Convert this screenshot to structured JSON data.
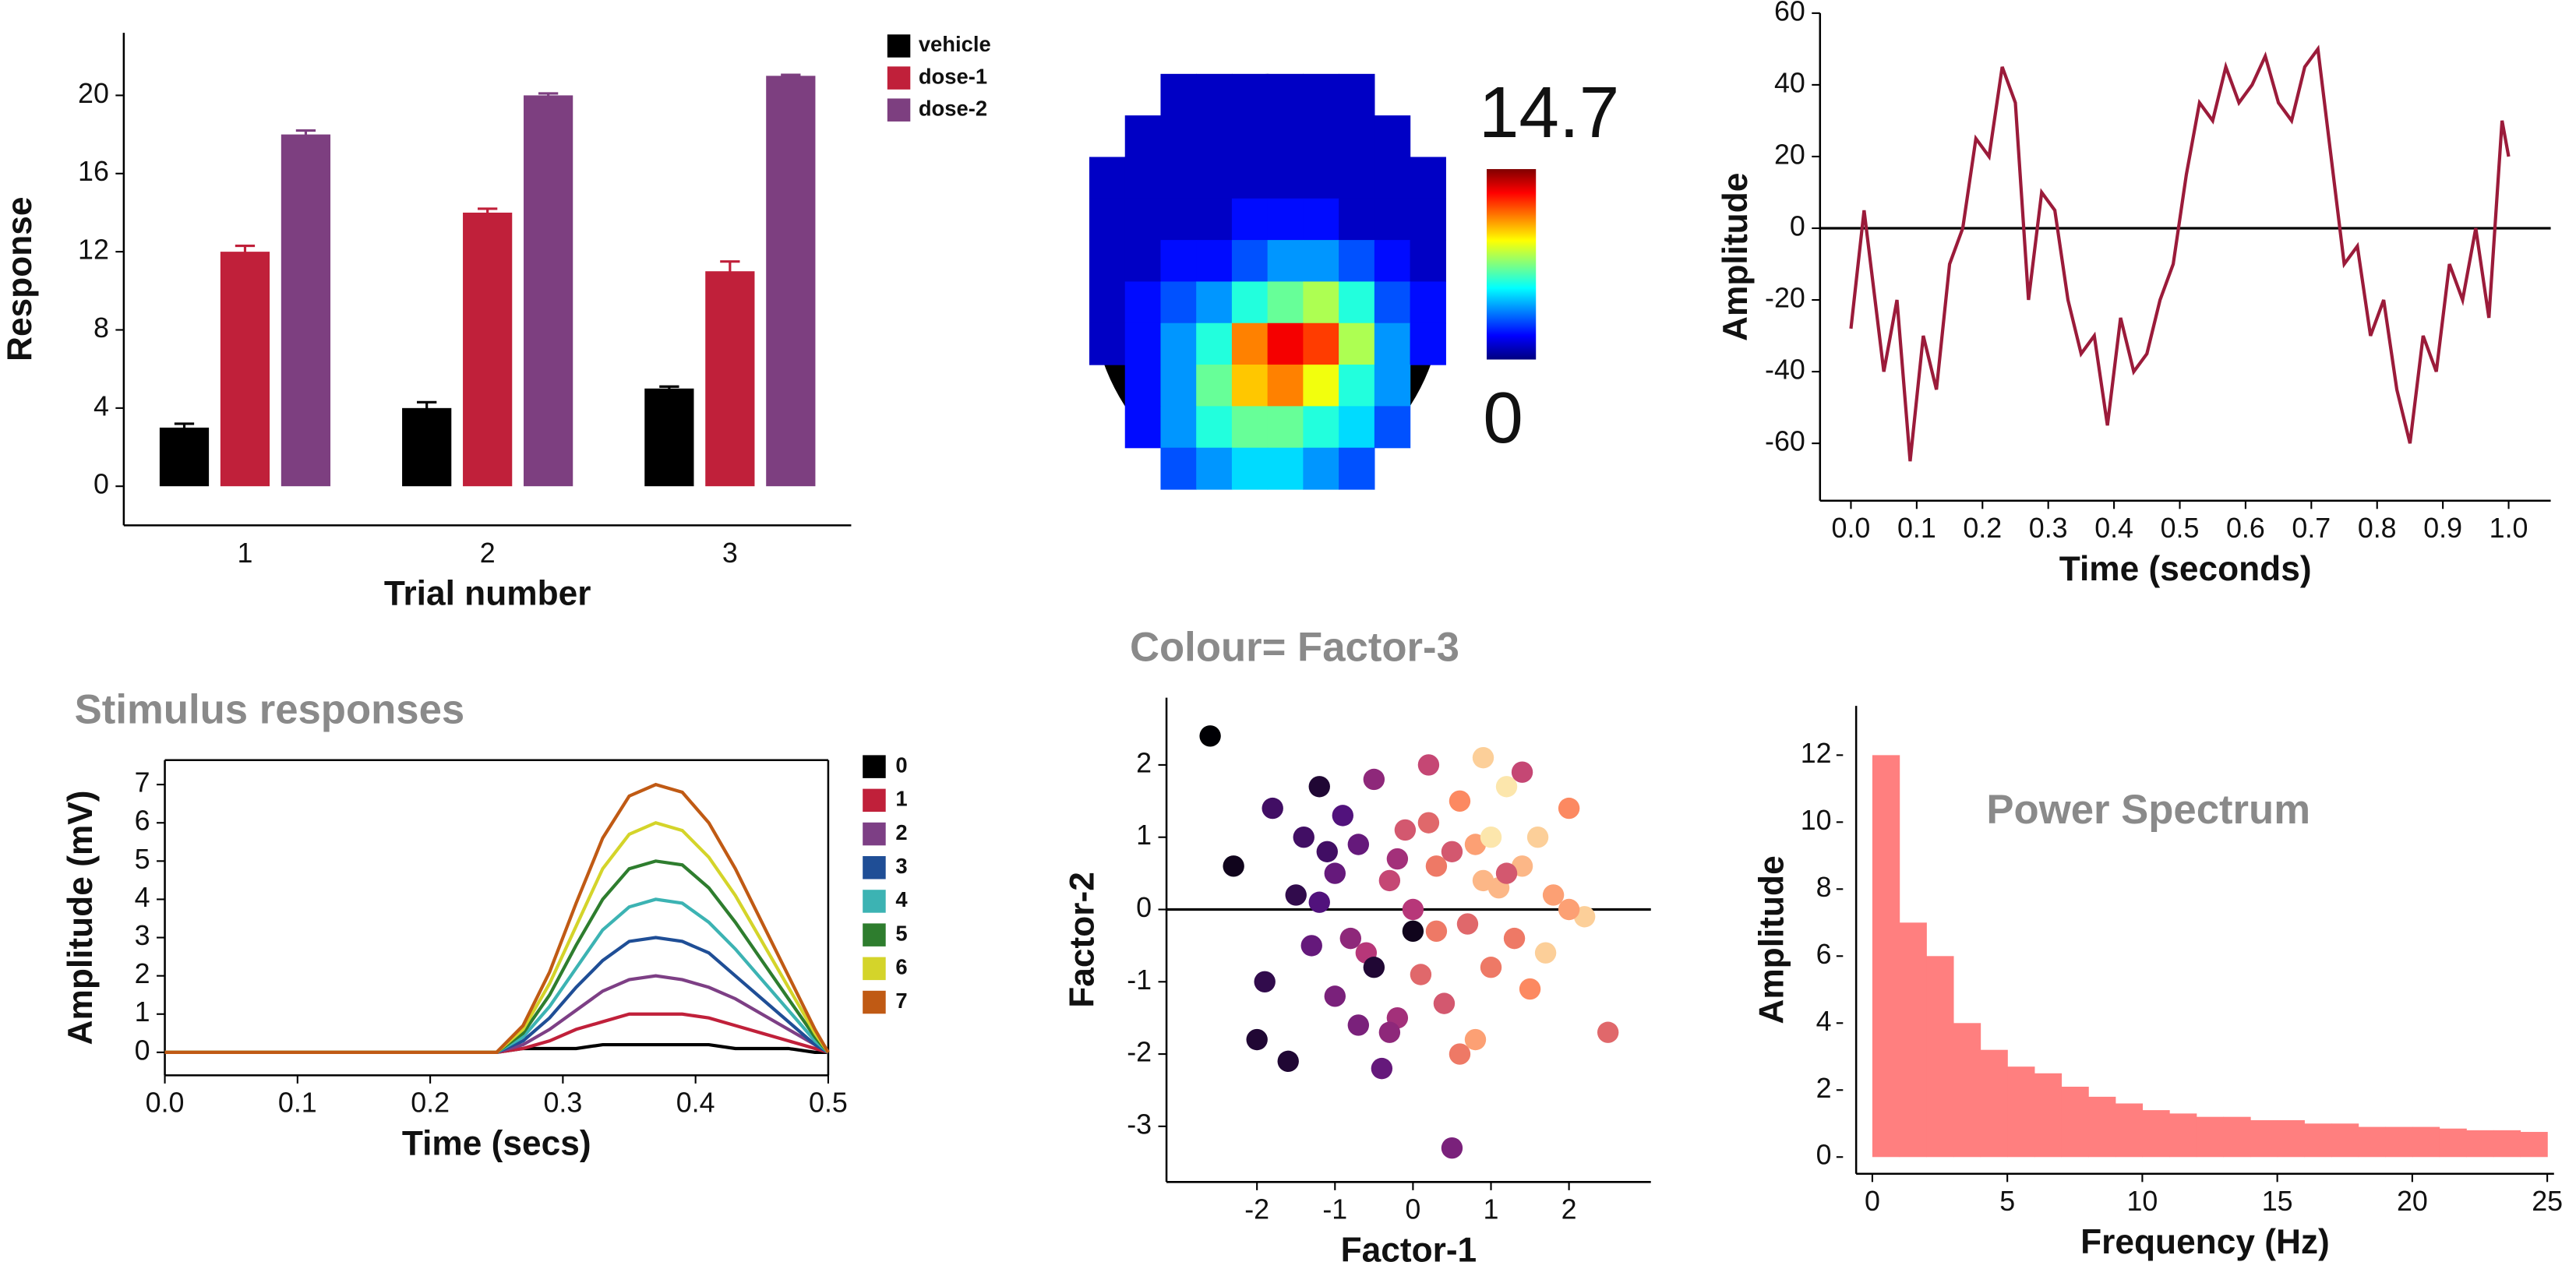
{
  "chart_data": [
    {
      "type": "bar",
      "ylabel": "Response",
      "xlabel": "Trial number",
      "categories": [
        1,
        2,
        3
      ],
      "series": [
        {
          "name": "vehicle",
          "color": "#000000",
          "values": [
            3,
            4,
            5
          ],
          "errors": [
            0.2,
            0.3,
            0.1
          ]
        },
        {
          "name": "dose-1",
          "color": "#c0203a",
          "values": [
            12,
            14,
            11
          ],
          "errors": [
            0.3,
            0.2,
            0.5
          ]
        },
        {
          "name": "dose-2",
          "color": "#7d3f80",
          "values": [
            18,
            20,
            21
          ],
          "errors": [
            0.2,
            0.1,
            0.05
          ]
        }
      ],
      "ylim": [
        -2,
        23.2
      ],
      "yticks": [
        0,
        4,
        8,
        12,
        16,
        20
      ]
    },
    {
      "type": "heatmap",
      "clim": [
        0,
        14.7
      ],
      "colormap": "jet",
      "values": [
        [
          null,
          null,
          1,
          1,
          1,
          1,
          1,
          1,
          null,
          null
        ],
        [
          null,
          1,
          1,
          1,
          1,
          1,
          1,
          1,
          1,
          null
        ],
        [
          1,
          1,
          1,
          1,
          1,
          1,
          1,
          1,
          1,
          1
        ],
        [
          1,
          1,
          1,
          1,
          2,
          2,
          2,
          1,
          1,
          1
        ],
        [
          1,
          1,
          2,
          2,
          3,
          4,
          4,
          3,
          2,
          1
        ],
        [
          1,
          2,
          3,
          4,
          6,
          7,
          8,
          6,
          3,
          2
        ],
        [
          1,
          2,
          4,
          6,
          11,
          13,
          12,
          8,
          4,
          2
        ],
        [
          null,
          2,
          4,
          7,
          10,
          11,
          9,
          6,
          4,
          null
        ],
        [
          null,
          2,
          4,
          6,
          7,
          7,
          6,
          5,
          3,
          null
        ],
        [
          null,
          null,
          3,
          4,
          5,
          5,
          4,
          3,
          null,
          null
        ]
      ]
    },
    {
      "type": "line",
      "ylabel": "Amplitude",
      "xlabel": "Time (seconds)",
      "color": "#9b1b3a",
      "zero_line": true,
      "x": [
        0,
        0.02,
        0.05,
        0.07,
        0.09,
        0.11,
        0.13,
        0.15,
        0.17,
        0.19,
        0.21,
        0.23,
        0.25,
        0.27,
        0.29,
        0.31,
        0.33,
        0.35,
        0.37,
        0.39,
        0.41,
        0.43,
        0.45,
        0.47,
        0.49,
        0.51,
        0.53,
        0.55,
        0.57,
        0.59,
        0.61,
        0.63,
        0.65,
        0.67,
        0.69,
        0.71,
        0.73,
        0.75,
        0.77,
        0.79,
        0.81,
        0.83,
        0.85,
        0.87,
        0.89,
        0.91,
        0.93,
        0.95,
        0.97,
        0.99,
        1.0
      ],
      "values": [
        -28,
        5,
        -40,
        -20,
        -65,
        -30,
        -45,
        -10,
        0,
        25,
        20,
        45,
        35,
        -20,
        10,
        5,
        -20,
        -35,
        -30,
        -55,
        -25,
        -40,
        -35,
        -20,
        -10,
        15,
        35,
        30,
        45,
        35,
        40,
        48,
        35,
        30,
        45,
        50,
        20,
        -10,
        -5,
        -30,
        -20,
        -45,
        -60,
        -30,
        -40,
        -10,
        -20,
        0,
        -25,
        30,
        20
      ],
      "xlim": [
        -0.047,
        1.064
      ],
      "xticks": [
        {
          "value": 0,
          "label": "0.0"
        },
        0.1,
        0.2,
        0.3,
        0.4,
        0.5,
        0.6,
        0.7,
        0.8,
        0.9,
        {
          "value": 1,
          "label": "1.0"
        }
      ],
      "ylim": [
        -76,
        60
      ],
      "yticks": [
        -60,
        -40,
        -20,
        0,
        20,
        40,
        60
      ]
    },
    {
      "type": "multiline",
      "title": "Stimulus responses",
      "ylabel": "Amplitude (mV)",
      "xlabel": "Time (secs)",
      "x": [
        0,
        0.05,
        0.1,
        0.15,
        0.2,
        0.25,
        0.27,
        0.29,
        0.31,
        0.33,
        0.35,
        0.37,
        0.39,
        0.41,
        0.43,
        0.45,
        0.47,
        0.49,
        0.5
      ],
      "series": [
        {
          "name": "0",
          "color": "#000000",
          "values": [
            0,
            0,
            0,
            0,
            0,
            0,
            0.1,
            0.1,
            0.1,
            0.2,
            0.2,
            0.2,
            0.2,
            0.2,
            0.1,
            0.1,
            0.1,
            0,
            0
          ]
        },
        {
          "name": "1",
          "color": "#c0203a",
          "values": [
            0,
            0,
            0,
            0,
            0,
            0,
            0.1,
            0.3,
            0.6,
            0.8,
            1.0,
            1.0,
            1.0,
            0.9,
            0.7,
            0.5,
            0.3,
            0.1,
            0
          ]
        },
        {
          "name": "2",
          "color": "#7d3f85",
          "values": [
            0,
            0,
            0,
            0,
            0,
            0,
            0.2,
            0.6,
            1.1,
            1.6,
            1.9,
            2.0,
            1.9,
            1.7,
            1.4,
            1.0,
            0.6,
            0.2,
            0
          ]
        },
        {
          "name": "3",
          "color": "#1f4e96",
          "values": [
            0,
            0,
            0,
            0,
            0,
            0,
            0.3,
            0.9,
            1.7,
            2.4,
            2.9,
            3.0,
            2.9,
            2.6,
            2.0,
            1.4,
            0.8,
            0.2,
            0
          ]
        },
        {
          "name": "4",
          "color": "#3cb3b3",
          "values": [
            0,
            0,
            0,
            0,
            0,
            0,
            0.4,
            1.2,
            2.2,
            3.2,
            3.8,
            4.0,
            3.9,
            3.4,
            2.7,
            1.9,
            1.1,
            0.3,
            0
          ]
        },
        {
          "name": "5",
          "color": "#2e7d2e",
          "values": [
            0,
            0,
            0,
            0,
            0,
            0,
            0.5,
            1.5,
            2.8,
            4.0,
            4.8,
            5.0,
            4.9,
            4.3,
            3.4,
            2.4,
            1.4,
            0.4,
            0
          ]
        },
        {
          "name": "6",
          "color": "#d4d42a",
          "values": [
            0,
            0,
            0,
            0,
            0,
            0,
            0.6,
            1.8,
            3.3,
            4.8,
            5.7,
            6.0,
            5.8,
            5.1,
            4.1,
            2.9,
            1.7,
            0.5,
            0
          ]
        },
        {
          "name": "7",
          "color": "#c05a14",
          "values": [
            0,
            0,
            0,
            0,
            0,
            0,
            0.7,
            2.1,
            3.9,
            5.6,
            6.7,
            7.0,
            6.8,
            6.0,
            4.8,
            3.4,
            2.0,
            0.6,
            0
          ]
        }
      ],
      "xlim": [
        0,
        0.5
      ],
      "xticks": [
        {
          "value": 0,
          "label": "0.0"
        },
        0.1,
        0.2,
        0.3,
        0.4,
        0.5
      ],
      "ylim": [
        -0.6,
        7.64
      ],
      "yticks": [
        0,
        1,
        2,
        3,
        4,
        5,
        6,
        7
      ]
    },
    {
      "type": "scatter",
      "title": "Colour= Factor-3",
      "xlabel": "Factor-1",
      "ylabel": "Factor-2",
      "colormap": "magma",
      "zero_line": true,
      "x": [
        -2.6,
        -2.3,
        -2.0,
        -1.8,
        -1.6,
        -1.5,
        -1.3,
        -1.2,
        -1.1,
        -1.0,
        -0.9,
        -0.8,
        -0.7,
        -0.6,
        -0.5,
        -0.4,
        -0.3,
        -0.2,
        -0.1,
        0.0,
        0.1,
        0.2,
        0.3,
        0.4,
        0.5,
        0.6,
        0.7,
        0.8,
        0.9,
        1.0,
        1.1,
        1.2,
        1.3,
        1.4,
        1.5,
        1.6,
        1.8,
        2.0,
        2.2,
        2.5,
        -1.4,
        -0.7,
        -0.2,
        0.3,
        0.8,
        1.2,
        -1.9,
        0.5,
        1.7,
        -0.5,
        0.9,
        -1.0,
        0.2,
        1.4,
        -0.3,
        2.0,
        0.6,
        -1.2,
        1.0,
        0.0
      ],
      "y": [
        2.4,
        0.6,
        -1.8,
        1.4,
        -2.1,
        0.2,
        -0.5,
        1.7,
        0.8,
        -1.2,
        1.3,
        -0.4,
        0.9,
        -0.6,
        1.8,
        -2.2,
        0.4,
        -1.5,
        1.1,
        0.0,
        -0.9,
        2.0,
        0.6,
        -1.3,
        -3.3,
        1.5,
        -0.2,
        0.9,
        2.1,
        -0.8,
        0.3,
        1.7,
        -0.4,
        0.6,
        -1.1,
        1.0,
        0.2,
        1.4,
        -0.1,
        -1.7,
        1.0,
        -1.6,
        0.7,
        -0.3,
        -1.8,
        0.5,
        -1.0,
        0.8,
        -0.6,
        -0.8,
        0.4,
        0.5,
        1.2,
        1.9,
        -1.7,
        0.0,
        -2.0,
        0.1,
        1.0,
        -0.3
      ],
      "c": [
        0.0,
        0.05,
        0.1,
        0.2,
        0.1,
        0.15,
        0.3,
        0.1,
        0.2,
        0.35,
        0.25,
        0.4,
        0.3,
        0.5,
        0.4,
        0.3,
        0.55,
        0.45,
        0.6,
        0.5,
        0.65,
        0.55,
        0.7,
        0.6,
        0.35,
        0.75,
        0.65,
        0.8,
        0.9,
        0.7,
        0.85,
        0.95,
        0.7,
        0.85,
        0.75,
        0.9,
        0.8,
        0.75,
        0.9,
        0.65,
        0.2,
        0.35,
        0.45,
        0.7,
        0.8,
        0.6,
        0.15,
        0.6,
        0.9,
        0.1,
        0.85,
        0.3,
        0.65,
        0.55,
        0.4,
        0.8,
        0.7,
        0.25,
        0.95,
        0.05
      ],
      "xlim": [
        -3.16,
        3.05
      ],
      "xticks": [
        -2,
        -1,
        0,
        1,
        2
      ],
      "ylim": [
        -3.77,
        2.93
      ],
      "yticks": [
        -3,
        -2,
        -1,
        0,
        1,
        2
      ]
    },
    {
      "type": "histogram",
      "title": "Power Spectrum",
      "ylabel": "Amplitude",
      "xlabel": "Frequency (Hz)",
      "color": "#ff7f7f",
      "bins": [
        0,
        1,
        2,
        3,
        4,
        5,
        6,
        7,
        8,
        9,
        10,
        11,
        12,
        13,
        14,
        15,
        16,
        17,
        18,
        19,
        20,
        21,
        22,
        23,
        24,
        25
      ],
      "values": [
        12,
        7,
        6,
        4,
        3.2,
        2.7,
        2.5,
        2.1,
        1.8,
        1.6,
        1.4,
        1.3,
        1.2,
        1.2,
        1.1,
        1.1,
        1.0,
        1.0,
        0.9,
        0.9,
        0.9,
        0.85,
        0.8,
        0.8,
        0.75
      ],
      "xlim": [
        -0.6,
        25.25
      ],
      "xticks": [
        0,
        5,
        10,
        15,
        20,
        25
      ],
      "ylim": [
        -0.5,
        13.47
      ],
      "yticks": [
        0,
        2,
        4,
        6,
        8,
        10,
        12
      ]
    }
  ]
}
